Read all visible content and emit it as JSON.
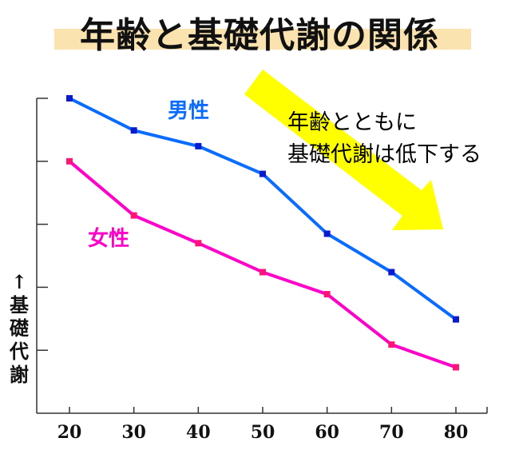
{
  "title": "年齢と基礎代謝の関係",
  "annotation": {
    "line1": "年齢とともに",
    "line2": "基礎代謝は低下する"
  },
  "chart_data": {
    "type": "line",
    "title": "年齢と基礎代謝の関係",
    "xlabel": "",
    "ylabel": "↑基礎代謝",
    "x": [
      20,
      30,
      40,
      50,
      60,
      70,
      80
    ],
    "xticks": [
      "20",
      "30",
      "40",
      "50",
      "60",
      "70",
      "80"
    ],
    "xlim": [
      15,
      85
    ],
    "ylim": [
      0,
      5
    ],
    "yticks_count": 5,
    "grid": false,
    "series": [
      {
        "name": "男性",
        "color": "#0a6cff",
        "marker_color": "#0a1ad0",
        "values": [
          5.0,
          4.49,
          4.24,
          3.8,
          2.85,
          2.24,
          1.49
        ]
      },
      {
        "name": "女性",
        "color": "#ff00c8",
        "marker_color": "#ff1478",
        "values": [
          4.0,
          3.14,
          2.7,
          2.24,
          1.89,
          1.09,
          0.73
        ]
      }
    ]
  }
}
